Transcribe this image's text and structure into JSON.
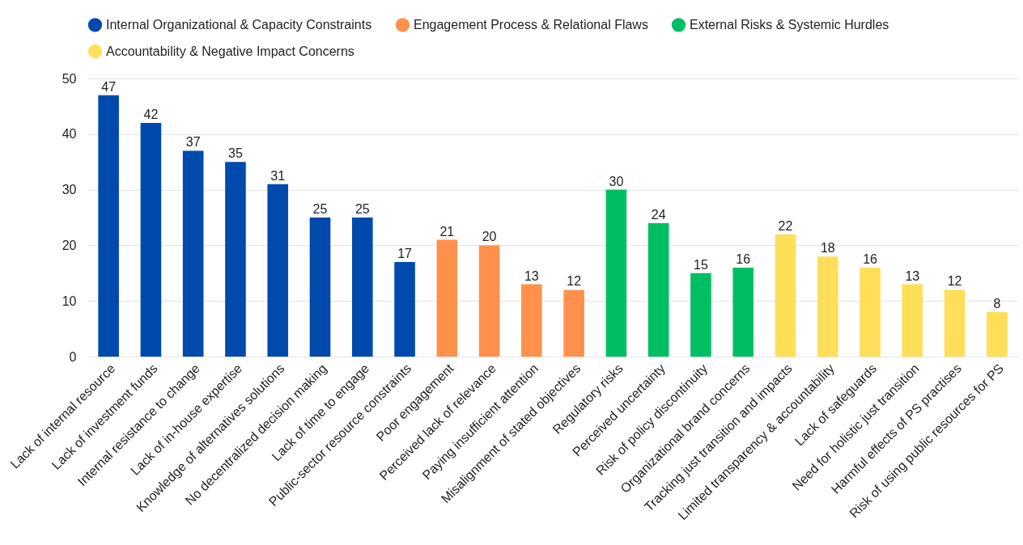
{
  "chart_data": {
    "type": "bar",
    "categories": [
      "Lack of internal resource",
      "Lack of investment funds",
      "Internal resistance to change",
      "Lack of in-house expertise",
      "Knowledge of alternatives solutions",
      "No decentralized decision making",
      "Lack of time to engage",
      "Public-sector resource constraints",
      "Poor engagement",
      "Perceived lack of relevance",
      "Paying insufficient attention",
      "Misalignment of stated objectives",
      "Regulatory risks",
      "Perceived uncertainty",
      "Risk of policy discontinuity",
      "Organizational brand concerns",
      "Tracking just transition and impacts",
      "Limited transparency & accountability",
      "Lack of safeguards",
      "Need for holistic just transition",
      "Harmful effects of PS practises",
      "Risk of using public resources for PS"
    ],
    "series": [
      {
        "name": "Internal Organizational & Capacity Constraints",
        "color": "#004aad",
        "values": [
          47,
          42,
          37,
          35,
          31,
          25,
          25,
          17,
          null,
          null,
          null,
          null,
          null,
          null,
          null,
          null,
          null,
          null,
          null,
          null,
          null,
          null
        ]
      },
      {
        "name": "Engagement Process & Relational Flaws",
        "color": "#ff914d",
        "values": [
          null,
          null,
          null,
          null,
          null,
          null,
          null,
          null,
          21,
          20,
          13,
          12,
          null,
          null,
          null,
          null,
          null,
          null,
          null,
          null,
          null,
          null
        ]
      },
      {
        "name": "External Risks & Systemic Hurdles",
        "color": "#00bf63",
        "values": [
          null,
          null,
          null,
          null,
          null,
          null,
          null,
          null,
          null,
          null,
          null,
          null,
          30,
          24,
          15,
          16,
          null,
          null,
          null,
          null,
          null,
          null
        ]
      },
      {
        "name": "Accountability & Negative Impact Concerns",
        "color": "#ffde59",
        "values": [
          null,
          null,
          null,
          null,
          null,
          null,
          null,
          null,
          null,
          null,
          null,
          null,
          null,
          null,
          null,
          null,
          22,
          18,
          16,
          13,
          12,
          8
        ]
      }
    ],
    "ylim": [
      0,
      50
    ],
    "yticks": [
      0,
      10,
      20,
      30,
      40,
      50
    ],
    "grid": "y",
    "legend": "top",
    "data_labels": true
  }
}
